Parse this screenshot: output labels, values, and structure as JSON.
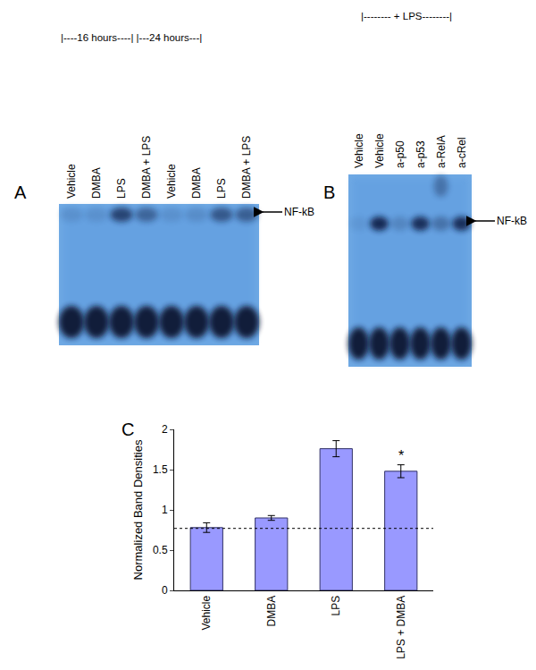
{
  "panels": {
    "A": {
      "letter": "A",
      "header": "|----16 hours----| |---24 hours---|",
      "lanes": [
        "Vehicle",
        "DMBA",
        "LPS",
        "DMBA + LPS",
        "Vehicle",
        "DMBA",
        "LPS",
        "DMBA + LPS"
      ],
      "band_label": "NF-kB"
    },
    "B": {
      "letter": "B",
      "header": "|-------- + LPS--------|",
      "lanes": [
        "Vehicle",
        "Vehicle",
        "a-p50",
        "a-p53",
        "a-RelA",
        "a-cRel"
      ],
      "band_label": "NF-kB"
    }
  },
  "chart_data": {
    "panel_label": "C",
    "type": "bar",
    "categories": [
      "Vehicle",
      "DMBA",
      "LPS",
      "LPS + DMBA"
    ],
    "values": [
      0.78,
      0.9,
      1.76,
      1.48
    ],
    "errors": [
      0.06,
      0.03,
      0.1,
      0.08
    ],
    "color": "#9999ff",
    "ylabel": "Normalized Band Densities",
    "ylim": [
      0,
      2
    ],
    "yticks": [
      0,
      0.5,
      1,
      1.5,
      2
    ],
    "reference_line": 0.77,
    "annotations": [
      {
        "category": "LPS + DMBA",
        "text": "*"
      }
    ]
  }
}
